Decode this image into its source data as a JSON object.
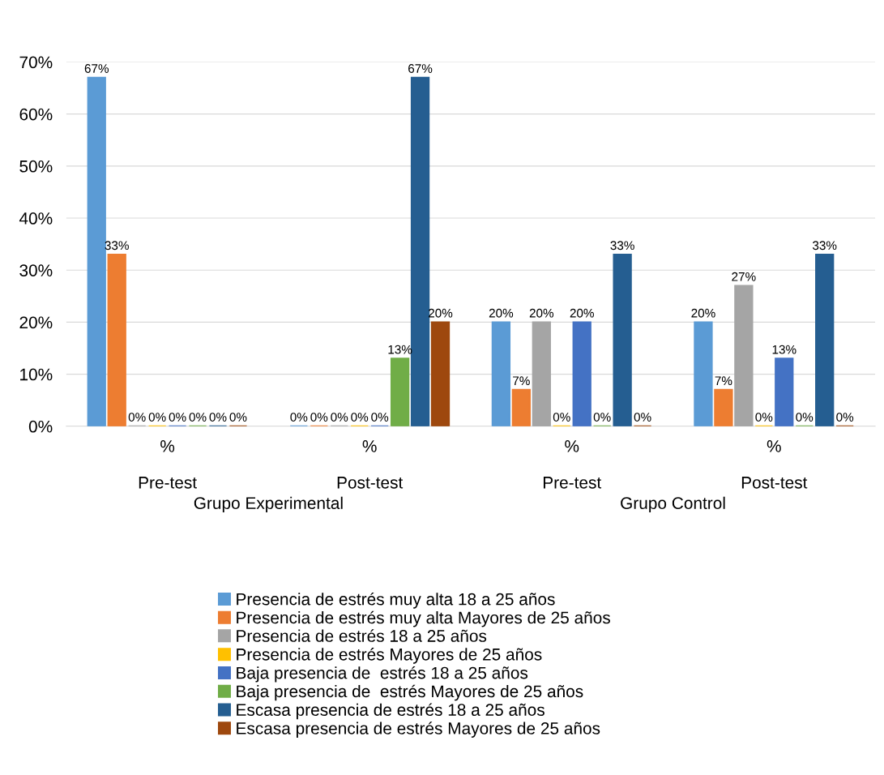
{
  "chart_data": {
    "type": "bar",
    "categories": [
      "%\n\nPre-test",
      "%\n\nPost-test",
      "%\n\nPre-test",
      "%\n\nPost-test"
    ],
    "annotations": [
      "Grupo Experimental",
      "Grupo Control"
    ],
    "ylim": [
      0,
      70
    ],
    "yticks": [
      {
        "value": 0,
        "label": "0%"
      },
      {
        "value": 10,
        "label": "10%"
      },
      {
        "value": 20,
        "label": "20%"
      },
      {
        "value": 30,
        "label": "30%"
      },
      {
        "value": 40,
        "label": "40%"
      },
      {
        "value": 50,
        "label": "50%"
      },
      {
        "value": 60,
        "label": "60%"
      },
      {
        "value": 70,
        "label": "70%"
      }
    ],
    "grid": "y",
    "legend": "bottom",
    "series": [
      {
        "name": "Presencia de estrés muy alta 18 a 25 años",
        "color": "#5b9bd5",
        "values": [
          67,
          0,
          20,
          20
        ],
        "value_labels": [
          "67%",
          "0%",
          "20%",
          "20%"
        ]
      },
      {
        "name": "Presencia de estrés muy alta Mayores de 25 años",
        "color": "#ed7d31",
        "values": [
          33,
          0,
          7,
          7
        ],
        "value_labels": [
          "33%",
          "0%",
          "7%",
          "7%"
        ]
      },
      {
        "name": "Presencia de estrés 18 a 25 años",
        "color": "#a5a5a5",
        "values": [
          0,
          0,
          20,
          27
        ],
        "value_labels": [
          "0%",
          "0%",
          "20%",
          "27%"
        ]
      },
      {
        "name": "Presencia de estrés Mayores de 25 años",
        "color": "#ffc000",
        "values": [
          0,
          0,
          0,
          0
        ],
        "value_labels": [
          "0%",
          "0%",
          "0%",
          "0%"
        ]
      },
      {
        "name": "Baja presencia de  estrés 18 a 25 años",
        "color": "#4472c4",
        "values": [
          0,
          0,
          20,
          13
        ],
        "value_labels": [
          "0%",
          "0%",
          "20%",
          "13%"
        ]
      },
      {
        "name": "Baja presencia de  estrés Mayores de 25 años",
        "color": "#70ad47",
        "values": [
          0,
          13,
          0,
          0
        ],
        "value_labels": [
          "0%",
          "13%",
          "0%",
          "0%"
        ]
      },
      {
        "name": "Escasa presencia de estrés 18 a 25 años",
        "color": "#255e91",
        "values": [
          0,
          67,
          33,
          33
        ],
        "value_labels": [
          "0%",
          "67%",
          "33%",
          "33%"
        ]
      },
      {
        "name": "Escasa presencia de estrés Mayores de 25 años",
        "color": "#9e480e",
        "values": [
          0,
          20,
          0,
          0
        ],
        "value_labels": [
          "0%",
          "20%",
          "0%",
          "0%"
        ]
      }
    ]
  }
}
